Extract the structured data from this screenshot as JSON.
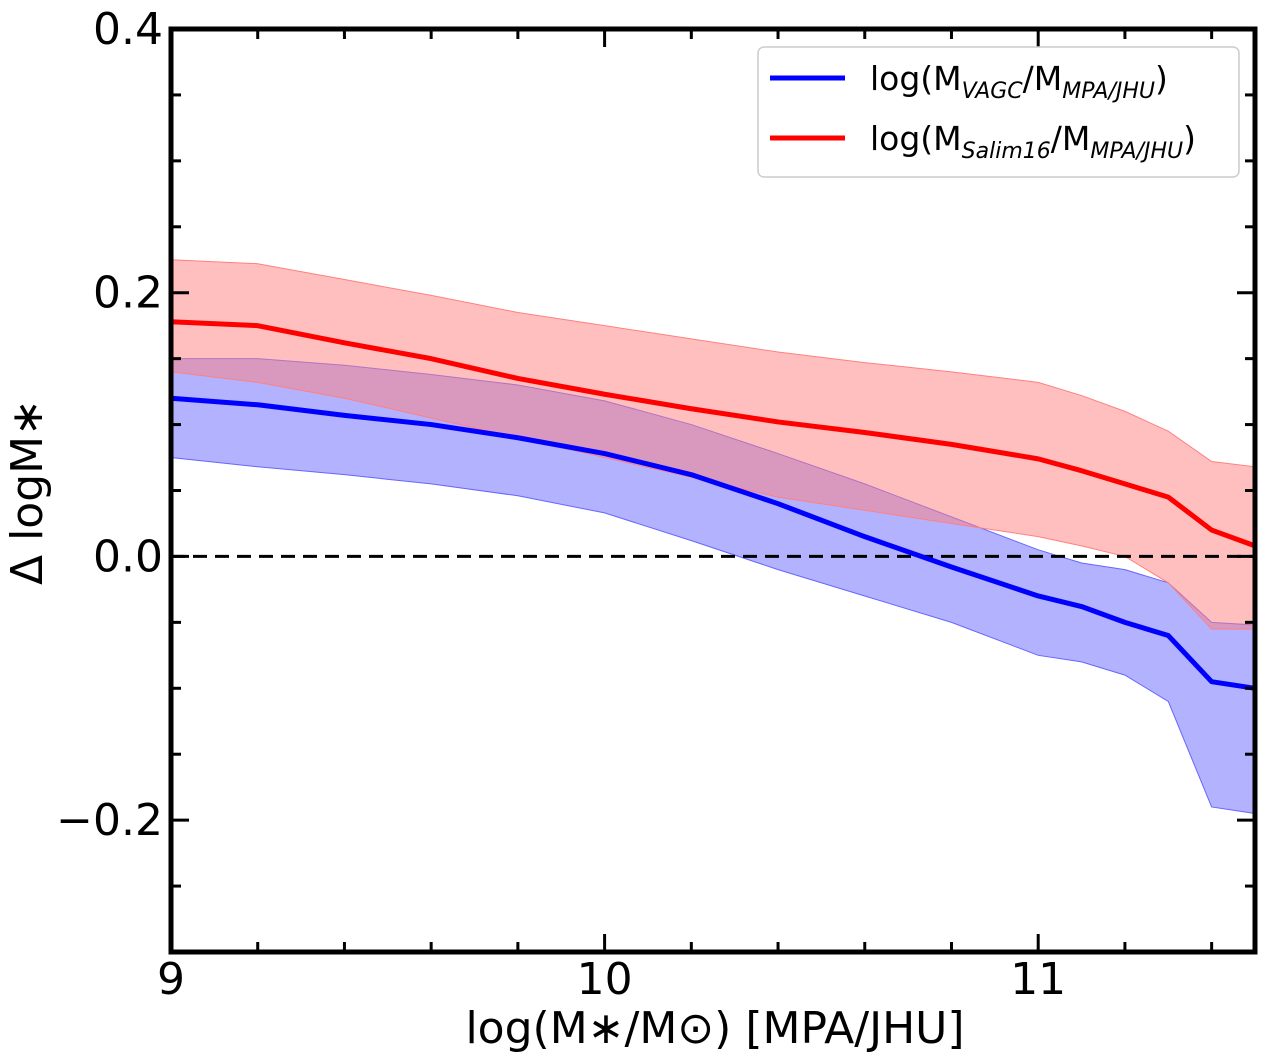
{
  "chart_data": {
    "type": "line",
    "xlabel": "log(M∗/M⊙) [MPA/JHU]",
    "ylabel": "Δ logM∗",
    "xlim": [
      9.0,
      11.5
    ],
    "ylim": [
      -0.3,
      0.4
    ],
    "x_ticks": [
      {
        "value": 9,
        "label": "9"
      },
      {
        "value": 10,
        "label": "10"
      },
      {
        "value": 11,
        "label": "11"
      }
    ],
    "y_ticks": [
      {
        "value": -0.2,
        "label": "−0.2"
      },
      {
        "value": 0.0,
        "label": "0.0"
      },
      {
        "value": 0.2,
        "label": "0.2"
      },
      {
        "value": 0.4,
        "label": "0.4"
      }
    ],
    "grid": false,
    "legend_position": "top-right",
    "reference_line": {
      "y": 0.0,
      "style": "dashed",
      "color": "#000000"
    },
    "x": [
      9.0,
      9.2,
      9.4,
      9.6,
      9.8,
      10.0,
      10.2,
      10.4,
      10.6,
      10.8,
      11.0,
      11.1,
      11.2,
      11.3,
      11.4,
      11.5
    ],
    "series": [
      {
        "name": "log(M_VAGC/M_MPA/JHU)",
        "legend": {
          "base": "log(M",
          "sub1": "VAGC",
          "mid": "/M",
          "sub2": "MPA/JHU",
          "end": ")"
        },
        "color": "#0000ff",
        "band_color": "#6666ff",
        "values": [
          0.12,
          0.115,
          0.107,
          0.1,
          0.09,
          0.078,
          0.062,
          0.04,
          0.015,
          -0.008,
          -0.03,
          -0.038,
          -0.05,
          -0.06,
          -0.095,
          -0.1
        ],
        "lower": [
          0.075,
          0.068,
          0.062,
          0.055,
          0.046,
          0.033,
          0.012,
          -0.01,
          -0.03,
          -0.05,
          -0.075,
          -0.08,
          -0.09,
          -0.11,
          -0.19,
          -0.195
        ],
        "upper": [
          0.15,
          0.15,
          0.145,
          0.138,
          0.13,
          0.118,
          0.1,
          0.078,
          0.055,
          0.03,
          0.005,
          -0.005,
          -0.01,
          -0.02,
          -0.05,
          -0.052
        ]
      },
      {
        "name": "log(M_Salim16/M_MPA/JHU)",
        "legend": {
          "base": "log(M",
          "sub1": "Salim16",
          "mid": "/M",
          "sub2": "MPA/JHU",
          "end": ")"
        },
        "color": "#ff0000",
        "band_color": "#ff8080",
        "values": [
          0.178,
          0.175,
          0.162,
          0.15,
          0.135,
          0.123,
          0.112,
          0.102,
          0.094,
          0.085,
          0.074,
          0.065,
          0.055,
          0.045,
          0.02,
          0.008
        ],
        "lower": [
          0.14,
          0.132,
          0.12,
          0.105,
          0.09,
          0.075,
          0.06,
          0.045,
          0.035,
          0.025,
          0.015,
          0.008,
          0.0,
          -0.02,
          -0.055,
          -0.055
        ],
        "upper": [
          0.225,
          0.222,
          0.21,
          0.198,
          0.185,
          0.175,
          0.165,
          0.155,
          0.147,
          0.14,
          0.132,
          0.122,
          0.11,
          0.095,
          0.072,
          0.068
        ]
      }
    ]
  }
}
